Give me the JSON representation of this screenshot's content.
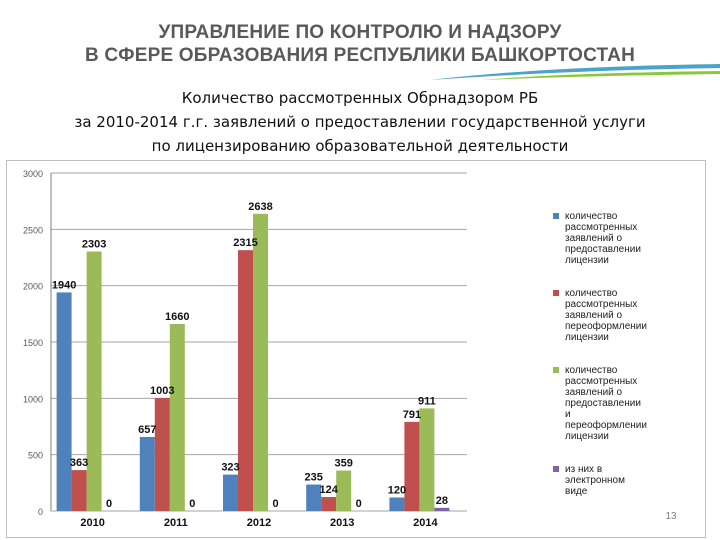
{
  "header": {
    "line1": "УПРАВЛЕНИЕ ПО КОНТРОЛЮ И НАДЗОРУ",
    "line2": "В СФЕРЕ ОБРАЗОВАНИЯ РЕСПУБЛИКИ БАШКОРТОСТАН"
  },
  "subtitle": {
    "line1": "Количество рассмотренных Обрнадзором РБ",
    "line2": "за 2010-2014 г.г. заявлений о предоставлении государственной услуги",
    "line3": "по лицензированию образовательной деятельности"
  },
  "page_number": "13",
  "colors": {
    "series1": "#4f81bd",
    "series2": "#c0504d",
    "series3": "#9bbb59",
    "series4": "#8064a2",
    "grid": "#a6a6a6"
  },
  "chart_data": {
    "type": "bar",
    "title": "",
    "xlabel": "",
    "ylabel": "",
    "ylim": [
      0,
      3000
    ],
    "yticks": [
      0,
      500,
      1000,
      1500,
      2000,
      2500,
      3000
    ],
    "grid": true,
    "legend_position": "right",
    "categories": [
      "2010",
      "2011",
      "2012",
      "2013",
      "2014"
    ],
    "series": [
      {
        "name": "количество рассмотренных заявлений о предоставлении лицензии",
        "color": "#4f81bd",
        "values": [
          1940,
          657,
          323,
          235,
          120
        ]
      },
      {
        "name": "количество рассмотренных заявлений о переоформлении лицензии",
        "color": "#c0504d",
        "values": [
          363,
          1003,
          2315,
          124,
          791
        ]
      },
      {
        "name": "количество рассмотренных заявлений о предоставлении и переоформлении лицензии",
        "color": "#9bbb59",
        "values": [
          2303,
          1660,
          2638,
          359,
          911
        ]
      },
      {
        "name": "из них в электронном виде",
        "color": "#8064a2",
        "values": [
          0,
          0,
          0,
          0,
          28
        ]
      }
    ]
  }
}
